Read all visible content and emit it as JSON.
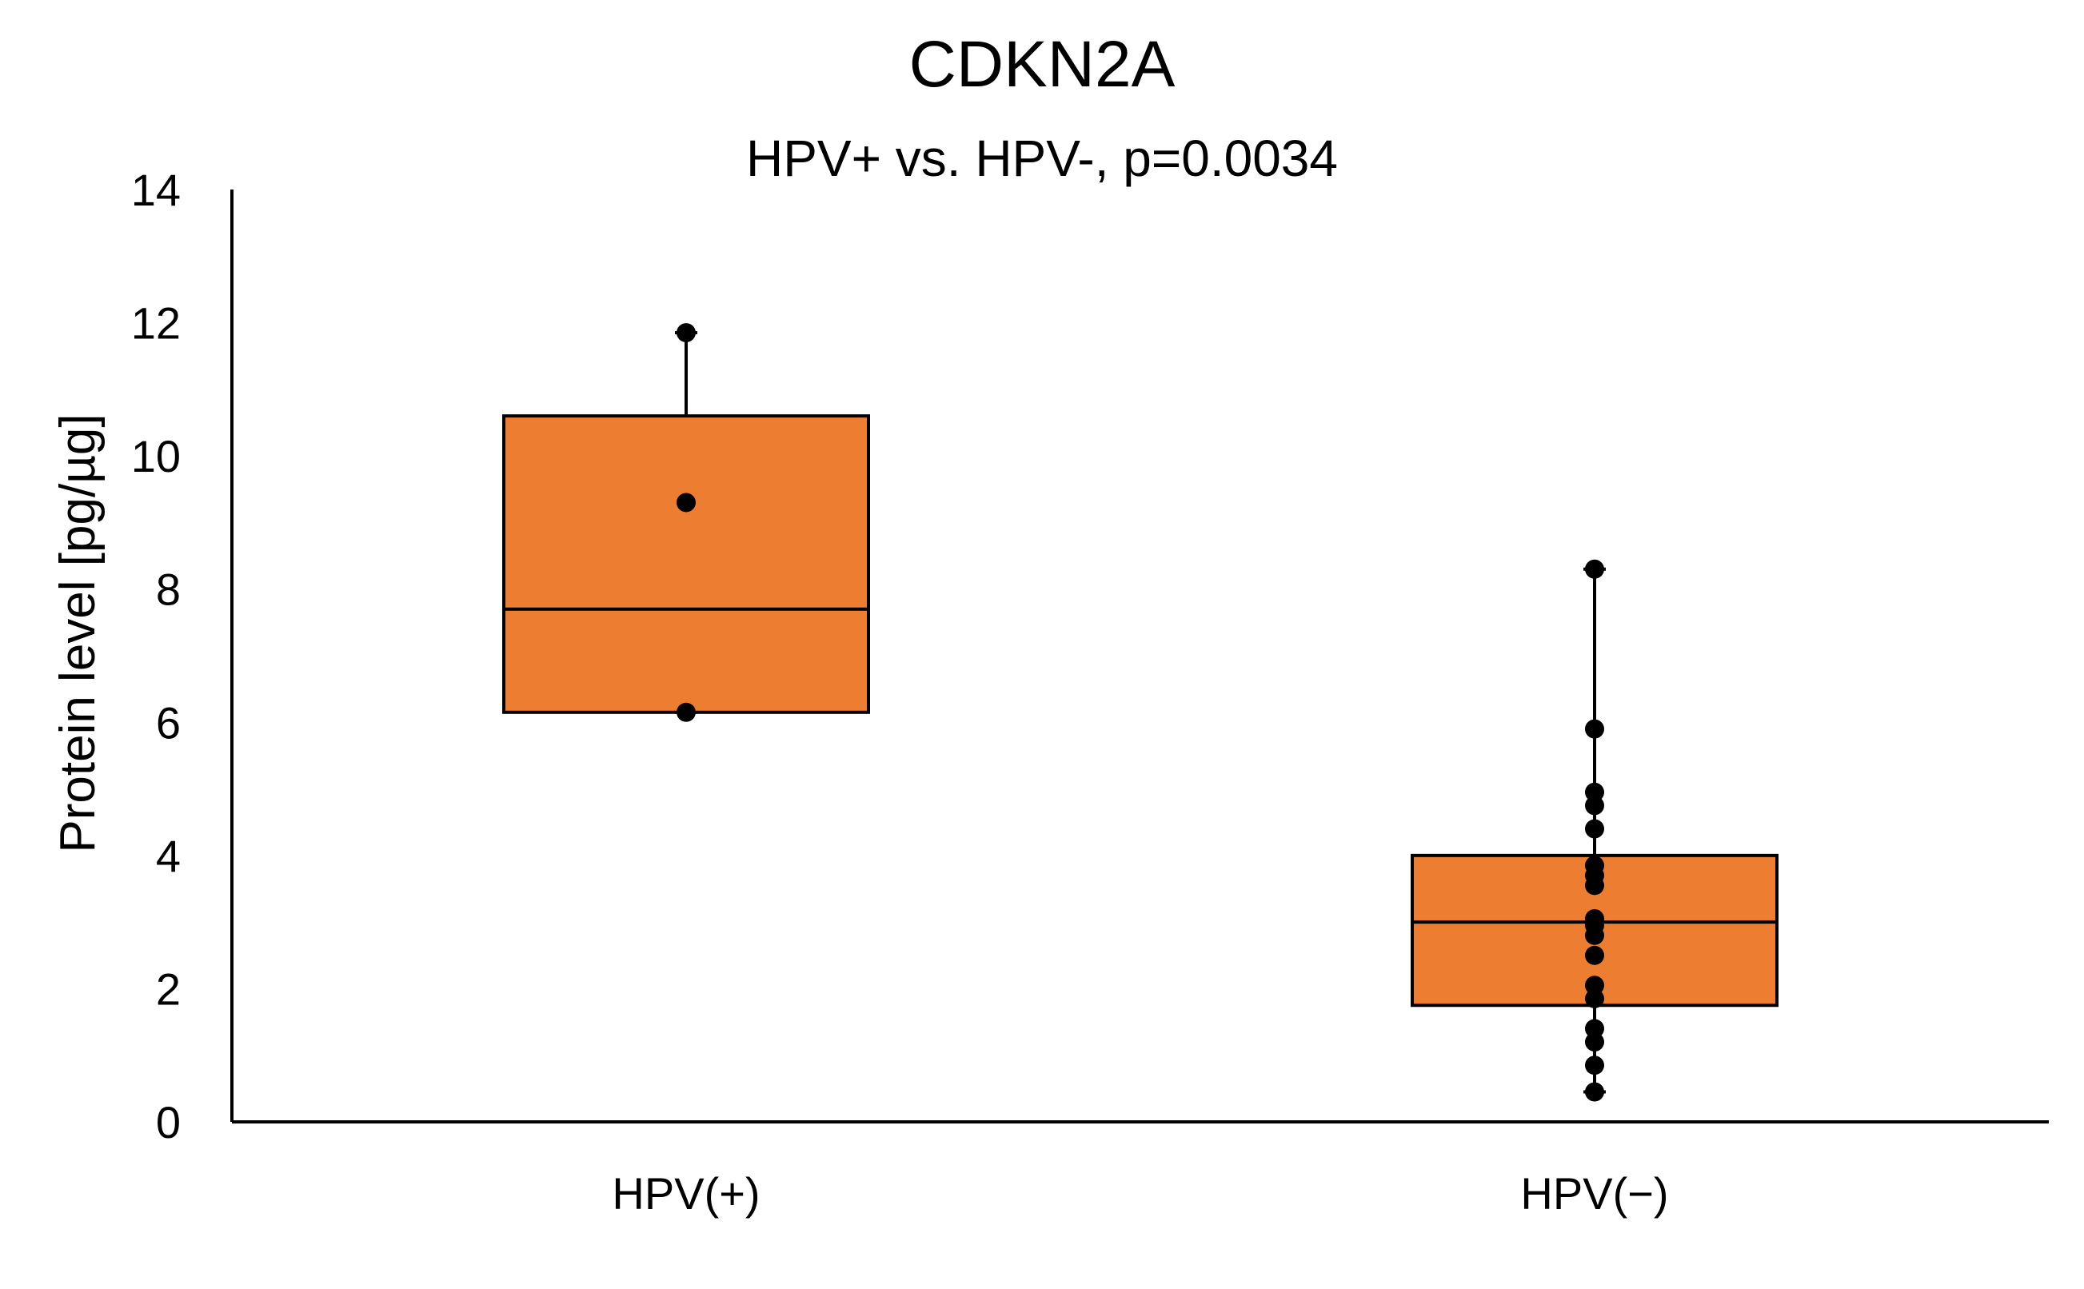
{
  "chart_data": {
    "type": "box",
    "title": "CDKN2A",
    "subtitle": "HPV+ vs. HPV-, p=0.0034",
    "xlabel": "",
    "ylabel": "Protein level [pg/µg]",
    "ylim": [
      0,
      14
    ],
    "yticks": [
      0,
      2,
      4,
      6,
      8,
      10,
      12,
      14
    ],
    "grid": false,
    "colors": {
      "box_fill": "#ED7D31",
      "stroke": "#000000",
      "point": "#000000"
    },
    "categories": [
      "HPV(+)",
      "HPV(−)"
    ],
    "boxes": [
      {
        "name": "HPV(+)",
        "whisker_low": 6.15,
        "q1": 6.15,
        "median": 7.7,
        "q3": 10.6,
        "whisker_high": 11.85,
        "points": [
          11.85,
          9.3,
          6.15
        ]
      },
      {
        "name": "HPV(−)",
        "whisker_low": 0.45,
        "q1": 1.75,
        "median": 3.0,
        "q3": 4.0,
        "whisker_high": 8.3,
        "points": [
          8.3,
          5.9,
          4.95,
          4.75,
          4.4,
          3.85,
          3.7,
          3.55,
          3.05,
          2.95,
          2.8,
          2.5,
          2.05,
          1.85,
          1.4,
          1.2,
          0.85,
          0.45
        ]
      }
    ]
  }
}
